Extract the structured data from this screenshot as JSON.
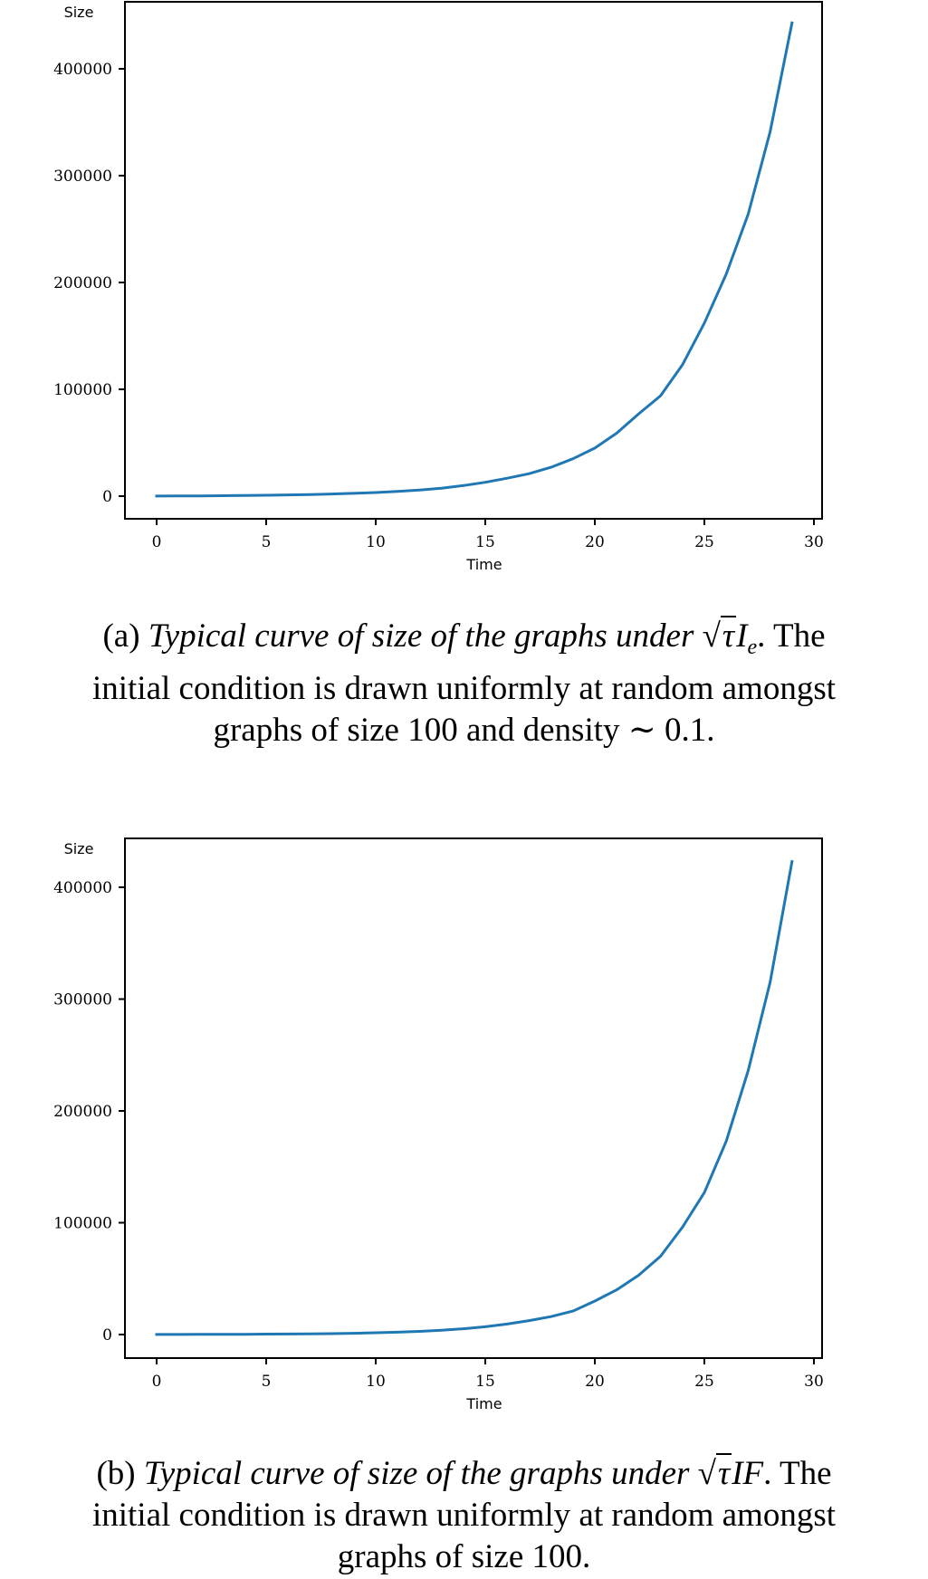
{
  "chart_data": [
    {
      "type": "line",
      "panel": "a",
      "title": "",
      "xlabel": "Time",
      "ylabel": "Size",
      "xlim": [
        -1.5,
        30.5
      ],
      "ylim": [
        -22000,
        465000
      ],
      "xticks": [
        0,
        5,
        10,
        15,
        20,
        25,
        30
      ],
      "yticks": [
        0,
        100000,
        200000,
        300000,
        400000
      ],
      "ytick_labels": [
        "0",
        "100000",
        "200000",
        "300000",
        "400000"
      ],
      "xtick_labels": [
        "0",
        "5",
        "10",
        "15",
        "20",
        "25",
        "30"
      ],
      "grid": false,
      "legend": null,
      "color": "#1f77b4",
      "x": [
        0,
        1,
        2,
        3,
        4,
        5,
        6,
        7,
        8,
        9,
        10,
        11,
        12,
        13,
        14,
        15,
        16,
        17,
        18,
        19,
        20,
        21,
        22,
        23,
        24,
        25,
        26,
        27,
        28,
        29
      ],
      "series": [
        {
          "name": "Size",
          "values": [
            100,
            180,
            280,
            420,
            600,
            850,
            1150,
            1550,
            2050,
            2650,
            3400,
            4400,
            5700,
            7400,
            9900,
            13000,
            16800,
            21000,
            27000,
            35000,
            45000,
            59000,
            77000,
            94000,
            123000,
            162000,
            208000,
            264000,
            341000,
            443000
          ]
        }
      ]
    },
    {
      "type": "line",
      "panel": "b",
      "title": "",
      "xlabel": "Time",
      "ylabel": "Size",
      "xlim": [
        -1.5,
        30.5
      ],
      "ylim": [
        -22000,
        445000
      ],
      "xticks": [
        0,
        5,
        10,
        15,
        20,
        25,
        30
      ],
      "yticks": [
        0,
        100000,
        200000,
        300000,
        400000
      ],
      "ytick_labels": [
        "0",
        "100000",
        "200000",
        "300000",
        "400000"
      ],
      "xtick_labels": [
        "0",
        "5",
        "10",
        "15",
        "20",
        "25",
        "30"
      ],
      "grid": false,
      "legend": null,
      "color": "#1f77b4",
      "x": [
        0,
        1,
        2,
        3,
        4,
        5,
        6,
        7,
        8,
        9,
        10,
        11,
        12,
        13,
        14,
        15,
        16,
        17,
        18,
        19,
        20,
        21,
        22,
        23,
        24,
        25,
        26,
        27,
        28,
        29
      ],
      "series": [
        {
          "name": "Size",
          "values": [
            100,
            120,
            160,
            210,
            280,
            370,
            480,
            620,
            820,
            1100,
            1600,
            2100,
            2800,
            3800,
            5200,
            7000,
            9400,
            12500,
            16000,
            21000,
            30000,
            40000,
            53000,
            70000,
            96000,
            127000,
            173000,
            236000,
            315000,
            423000
          ]
        }
      ]
    }
  ],
  "captions": {
    "a": {
      "label": "(a)",
      "italic": "Typical curve of size of the graphs under",
      "math_sqrt": "τ",
      "math_rest": "I",
      "math_sub": "e",
      "after": ". The",
      "line2": "initial condition is drawn uniformly at random amongst",
      "line3": "graphs of size 100 and density ∼ 0.1."
    },
    "b": {
      "label": "(b)",
      "italic": "Typical curve of size of the graphs under",
      "math_sqrt": "τ",
      "math_rest": "IF",
      "math_sub": "",
      "after": ". The",
      "line2": "initial condition is drawn uniformly at random amongst",
      "line3": "graphs of size 100."
    }
  }
}
